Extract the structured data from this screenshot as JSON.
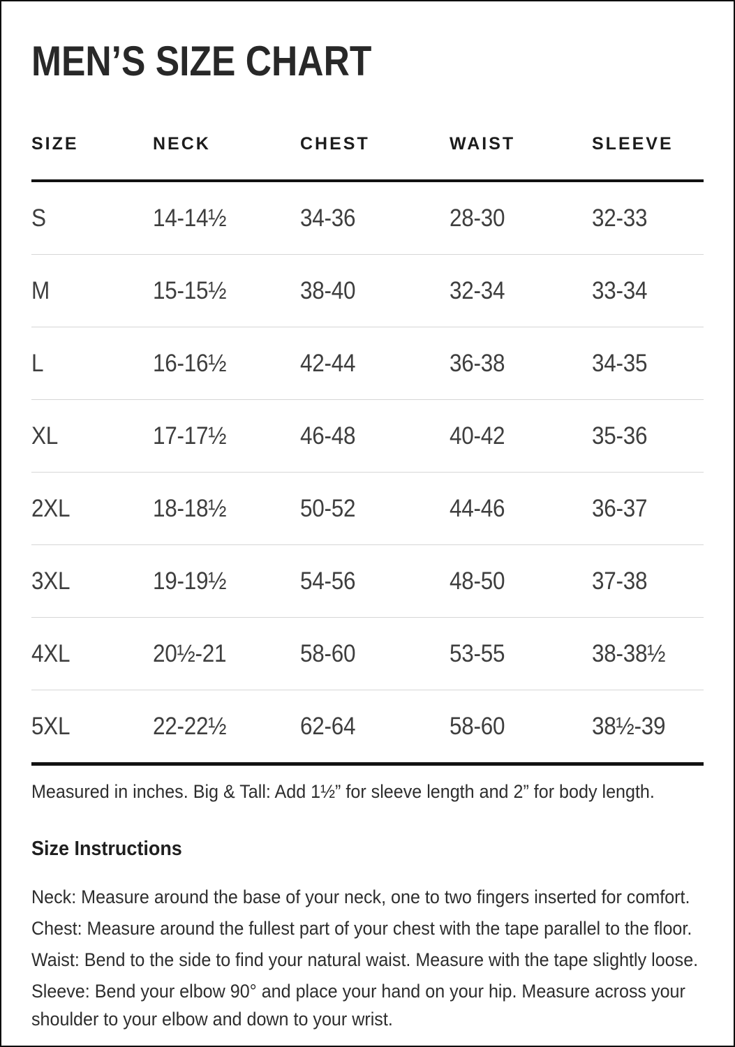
{
  "title": "MEN’S SIZE CHART",
  "table": {
    "columns": [
      "SIZE",
      "NECK",
      "CHEST",
      "WAIST",
      "SLEEVE"
    ],
    "rows": [
      {
        "size": "S",
        "neck": "14-14½",
        "chest": "34-36",
        "waist": "28-30",
        "sleeve": "32-33"
      },
      {
        "size": "M",
        "neck": "15-15½",
        "chest": "38-40",
        "waist": "32-34",
        "sleeve": "33-34"
      },
      {
        "size": "L",
        "neck": "16-16½",
        "chest": "42-44",
        "waist": "36-38",
        "sleeve": "34-35"
      },
      {
        "size": "XL",
        "neck": "17-17½",
        "chest": "46-48",
        "waist": "40-42",
        "sleeve": "35-36"
      },
      {
        "size": "2XL",
        "neck": "18-18½",
        "chest": "50-52",
        "waist": "44-46",
        "sleeve": "36-37"
      },
      {
        "size": "3XL",
        "neck": "19-19½",
        "chest": "54-56",
        "waist": "48-50",
        "sleeve": "37-38"
      },
      {
        "size": "4XL",
        "neck": "20½-21",
        "chest": "58-60",
        "waist": "53-55",
        "sleeve": "38-38½"
      },
      {
        "size": "5XL",
        "neck": "22-22½",
        "chest": "62-64",
        "waist": "58-60",
        "sleeve": "38½-39"
      }
    ],
    "footnote": "Measured in inches. Big & Tall: Add 1½” for sleeve length and 2” for body length."
  },
  "instructions": {
    "heading": "Size Instructions",
    "items": [
      "Neck: Measure around the base of your neck, one to two fingers inserted for comfort.",
      "Chest: Measure around the fullest part of your chest with the tape parallel to the floor.",
      "Waist: Bend to the side to find your natural waist. Measure with the tape slightly loose.",
      "Sleeve: Bend your elbow 90° and place your hand on your hip. Measure across your shoulder to your elbow and down to your wrist."
    ]
  },
  "colors": {
    "rule": "#121212",
    "row_separator": "#d6d6d6",
    "title_text": "#282828",
    "data_text": "#3e3e3e",
    "body_text": "#2d2d2d"
  }
}
